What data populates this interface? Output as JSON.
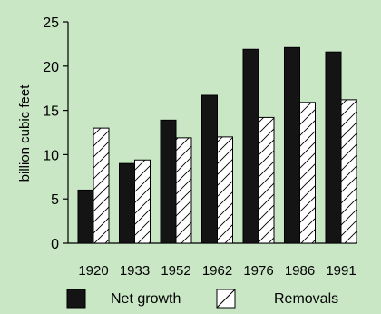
{
  "chart_data": {
    "type": "bar",
    "title": "",
    "xlabel": "",
    "ylabel": "billion cubic feet",
    "ylim": [
      0,
      25
    ],
    "yticks": [
      0,
      5,
      10,
      15,
      20,
      25
    ],
    "categories": [
      "1920",
      "1933",
      "1952",
      "1962",
      "1976",
      "1986",
      "1991"
    ],
    "series": [
      {
        "name": "Net growth",
        "values": [
          6.0,
          9.0,
          13.9,
          16.7,
          21.9,
          22.1,
          21.6
        ],
        "fill": "solid-black"
      },
      {
        "name": "Removals",
        "values": [
          13.0,
          9.4,
          11.9,
          12.0,
          14.2,
          15.9,
          16.2
        ],
        "fill": "diagonal-hatch"
      }
    ],
    "grid": false,
    "legend_position": "bottom"
  },
  "colors": {
    "background": "#c9e7c5",
    "net_growth_fill": "#141414",
    "removals_fill": "#ffffff",
    "stroke": "#000000"
  }
}
